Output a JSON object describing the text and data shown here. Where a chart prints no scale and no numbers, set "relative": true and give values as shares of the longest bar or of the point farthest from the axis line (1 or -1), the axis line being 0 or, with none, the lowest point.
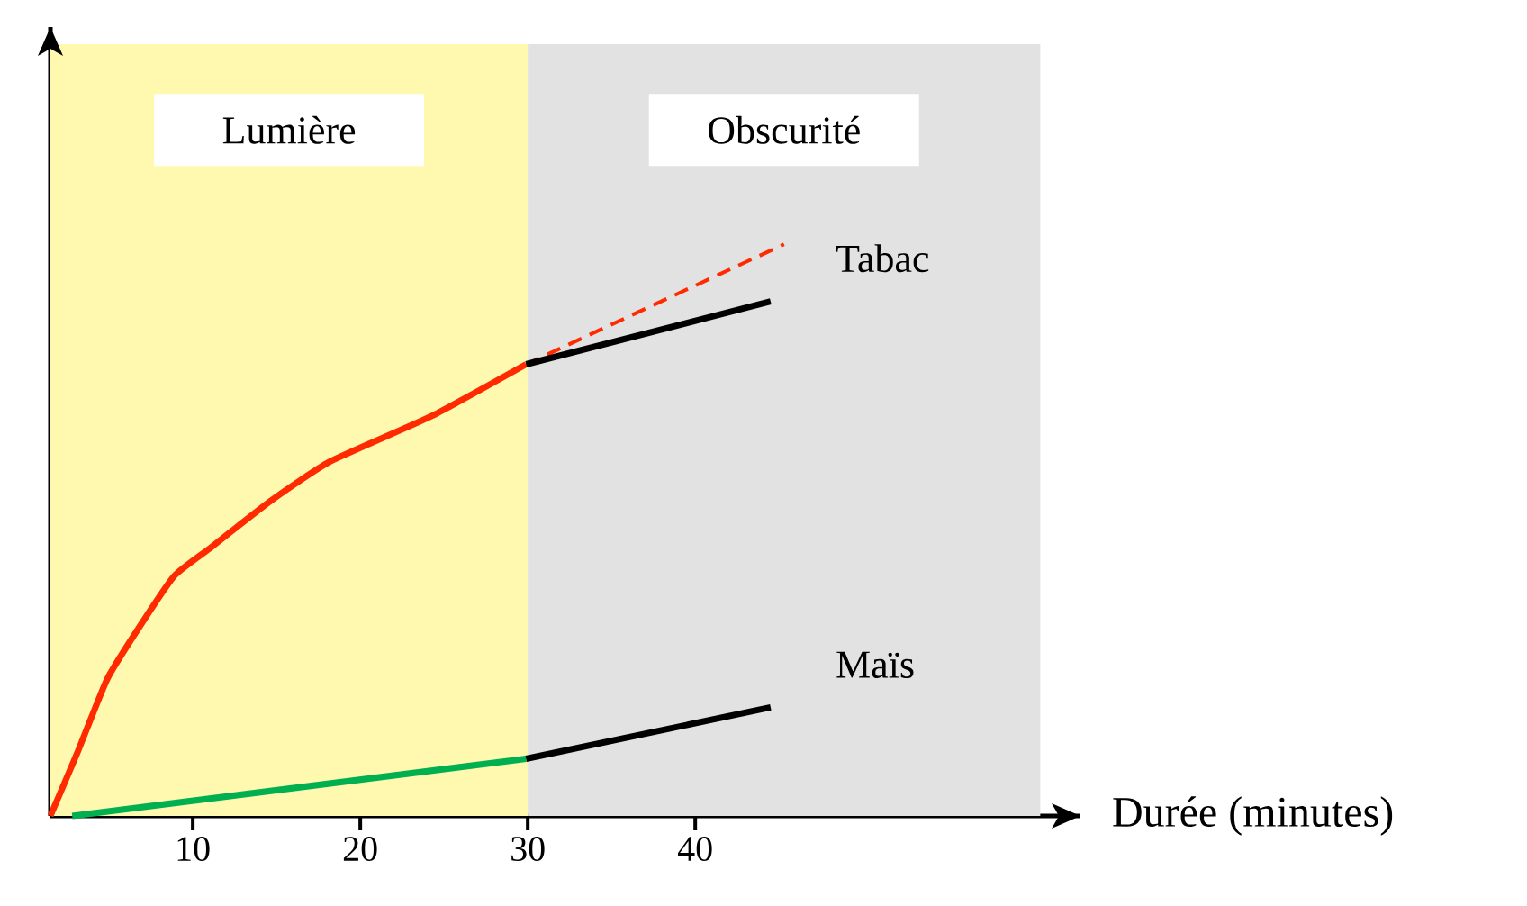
{
  "chart_data": {
    "type": "line",
    "relative": true,
    "xlabel": "Durée (minutes)",
    "xlim": [
      1.5,
      63
    ],
    "xticks": [
      10,
      20,
      30,
      40
    ],
    "grid": false,
    "tick_labels": "x",
    "line_style": "solid",
    "marker": "none",
    "bands": [
      {
        "axis": "x",
        "from": 1.5,
        "to": 30,
        "label": "Lumière",
        "color": "#fff9b0"
      },
      {
        "axis": "x",
        "from": 30,
        "to": 60.6,
        "label": "Obscurité",
        "color": "#e2e2e2"
      }
    ],
    "series": [
      {
        "color": "#ff2a00",
        "x": [
          1.5,
          3.1,
          4.9,
          6.8,
          8.9,
          11.1,
          14.6,
          18.2,
          24.3,
          29.9
        ],
        "values": [
          0,
          0.11,
          0.24,
          0.33,
          0.42,
          0.47,
          0.55,
          0.62,
          0.7,
          0.79
        ]
      },
      {
        "color": "#ff2a00",
        "line_style": "dashed",
        "x": [
          29.9,
          45.3
        ],
        "values": [
          0.79,
          1.0
        ]
      },
      {
        "name": "Tabac",
        "color": "#000000",
        "x": [
          29.9,
          44.5
        ],
        "values": [
          0.79,
          0.9
        ]
      },
      {
        "color": "#00b050",
        "x": [
          2.8,
          29.9
        ],
        "values": [
          0,
          0.1
        ]
      },
      {
        "name": "Maïs",
        "color": "#000000",
        "x": [
          29.9,
          44.5
        ],
        "values": [
          0.1,
          0.19
        ]
      }
    ]
  }
}
